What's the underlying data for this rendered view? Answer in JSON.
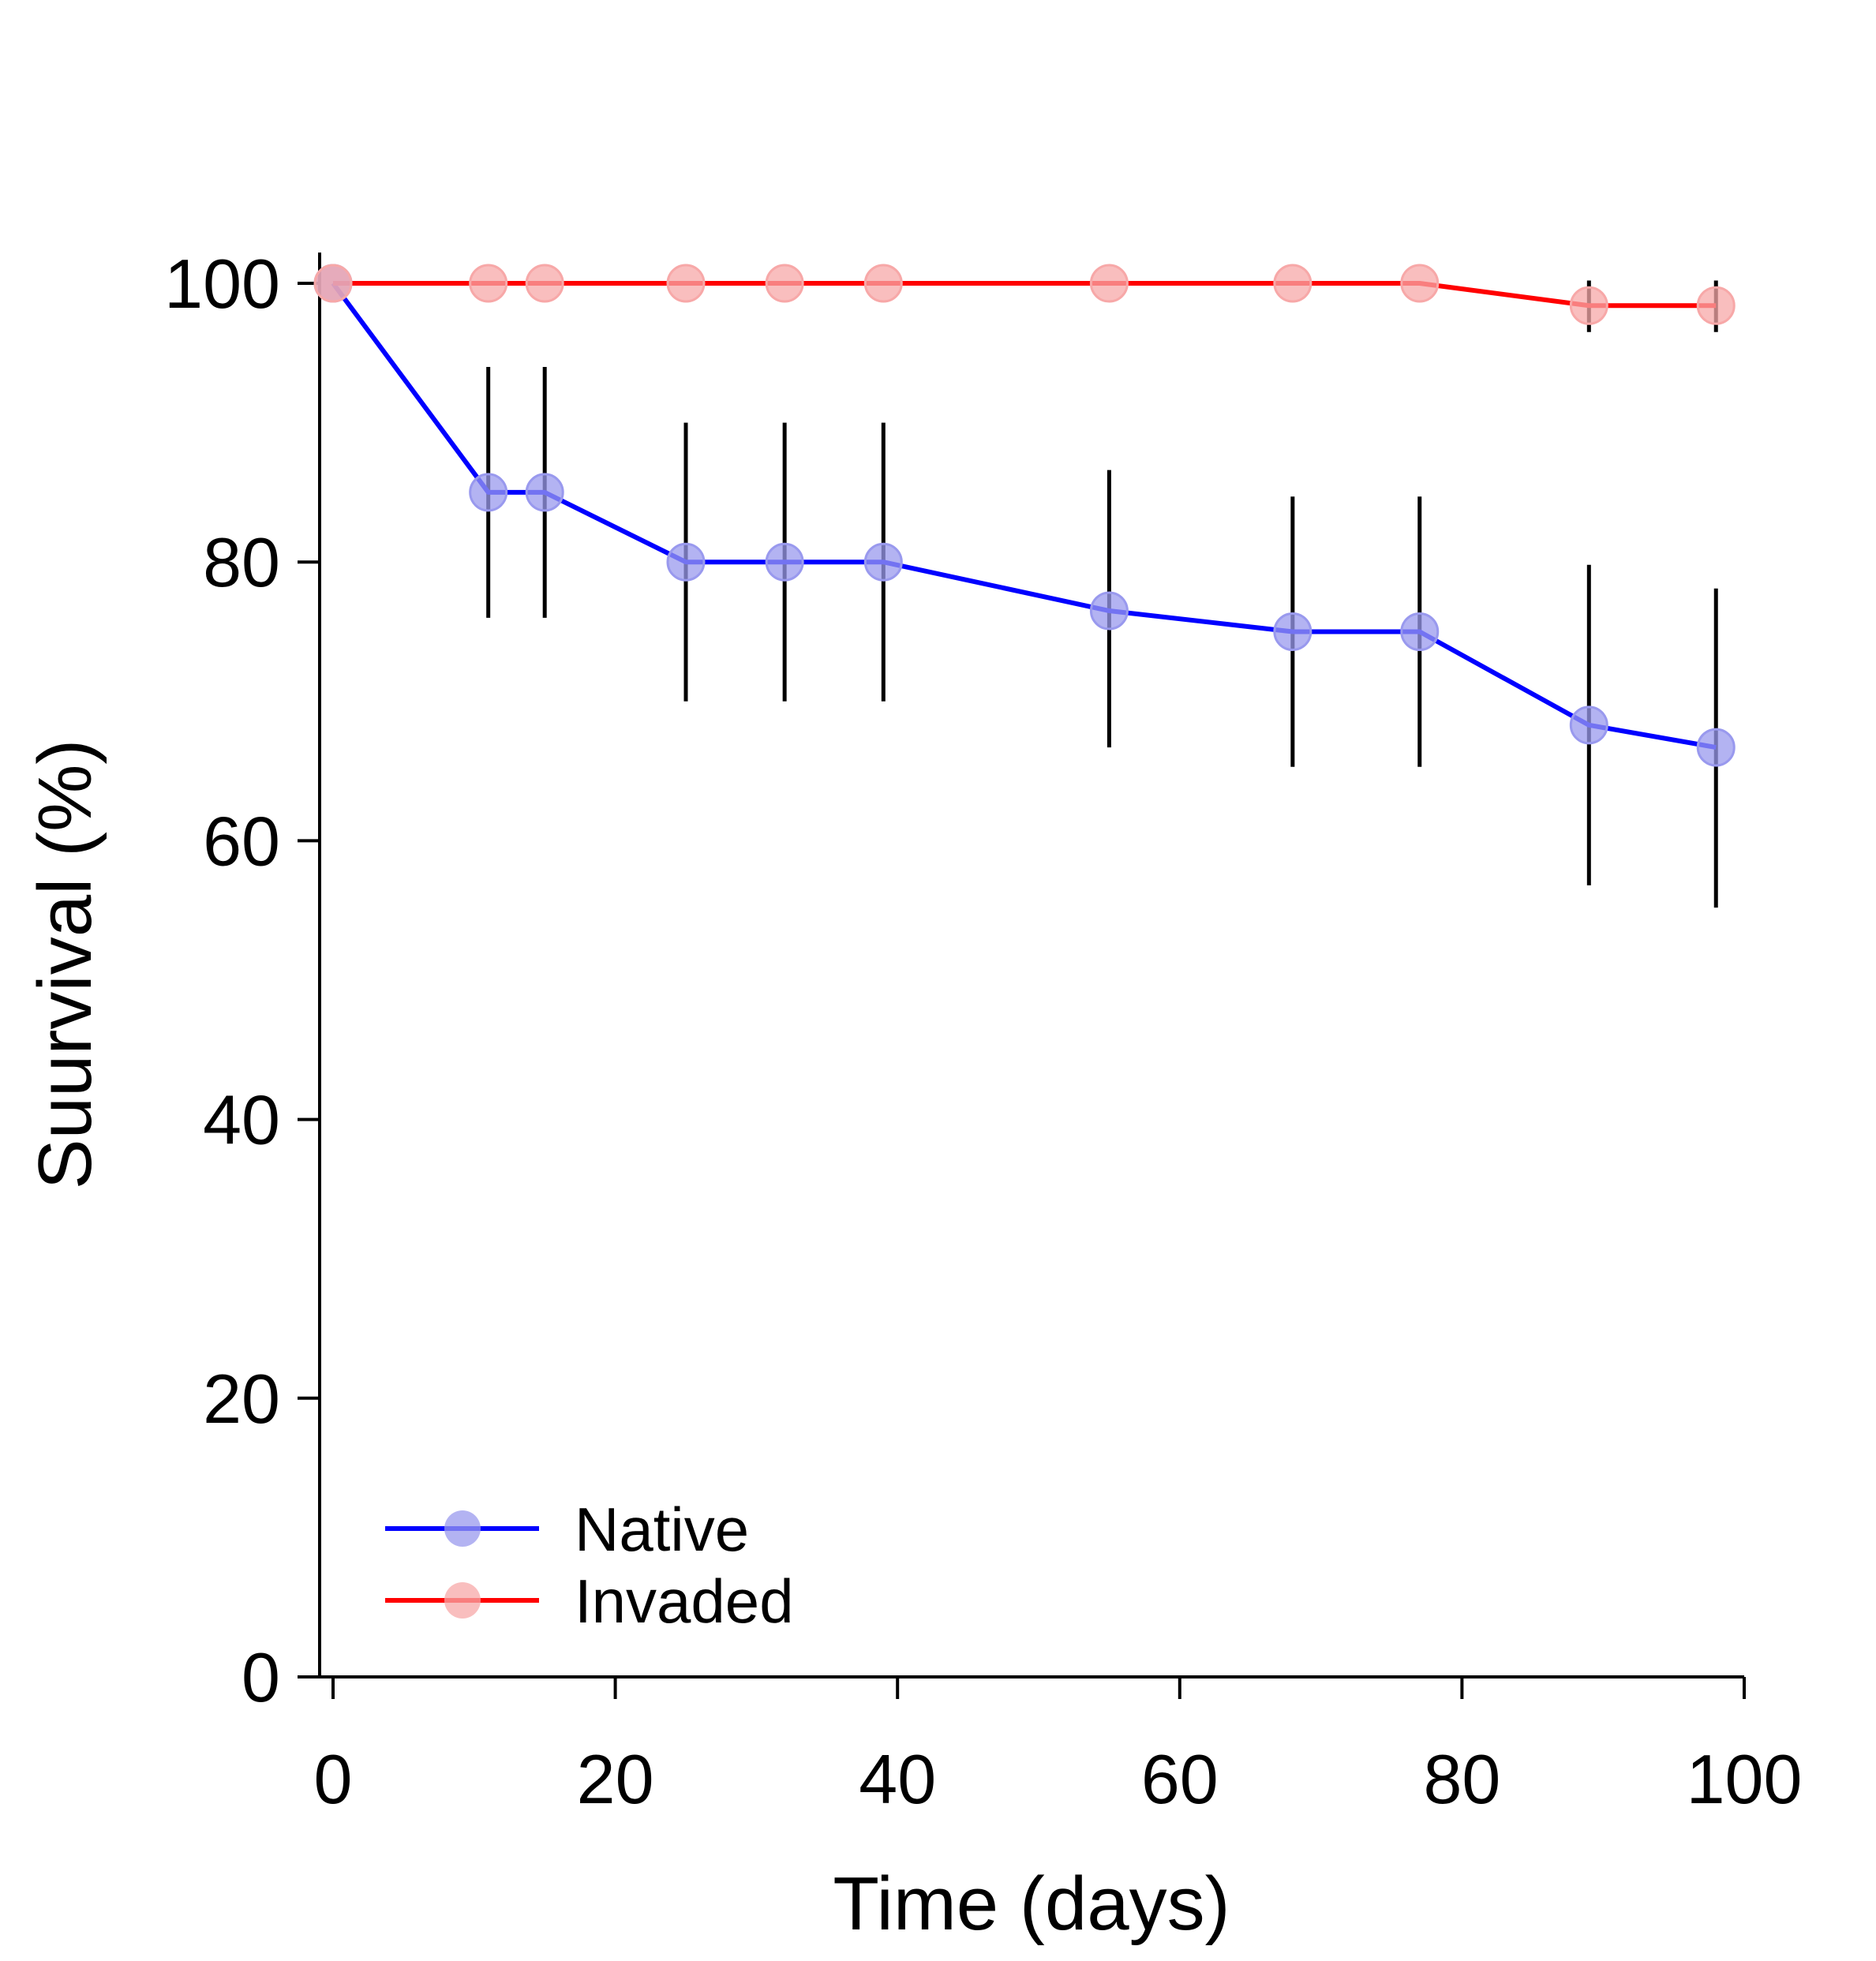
{
  "chart_data": {
    "type": "line",
    "title": "",
    "xlabel": "Time (days)",
    "ylabel": "Suurvival (%)",
    "xlim": [
      -2,
      100
    ],
    "ylim": [
      0,
      102
    ],
    "xticks": [
      0,
      20,
      40,
      60,
      80,
      100
    ],
    "yticks": [
      0,
      20,
      40,
      60,
      80,
      100
    ],
    "grid": false,
    "legend_position": "bottom-left",
    "series": [
      {
        "name": "Native",
        "color": "#0000ff",
        "marker_color": "#9999ee",
        "x": [
          0,
          11,
          15,
          25,
          32,
          39,
          55,
          68,
          77,
          89,
          98
        ],
        "y": [
          100,
          85,
          85,
          80,
          80,
          80,
          76.5,
          75,
          75,
          68.3,
          66.7
        ],
        "error_low": [
          100,
          76,
          76,
          70,
          70,
          70,
          66.7,
          65.3,
          65.3,
          56.8,
          55.2
        ],
        "error_high": [
          100,
          94,
          94,
          90,
          90,
          90,
          86.6,
          84.7,
          84.7,
          79.8,
          78.1
        ]
      },
      {
        "name": "Invaded",
        "color": "#ff0000",
        "marker_color": "#f7a8a8",
        "x": [
          0,
          11,
          15,
          25,
          32,
          39,
          55,
          68,
          77,
          89,
          98
        ],
        "y": [
          100,
          100,
          100,
          100,
          100,
          100,
          100,
          100,
          100,
          98.4,
          98.4
        ],
        "error_low": [
          100,
          100,
          100,
          100,
          100,
          100,
          100,
          100,
          100,
          96.5,
          96.5
        ],
        "error_high": [
          100,
          100,
          100,
          100,
          100,
          100,
          100,
          100,
          100,
          100.2,
          100.2
        ]
      }
    ]
  }
}
